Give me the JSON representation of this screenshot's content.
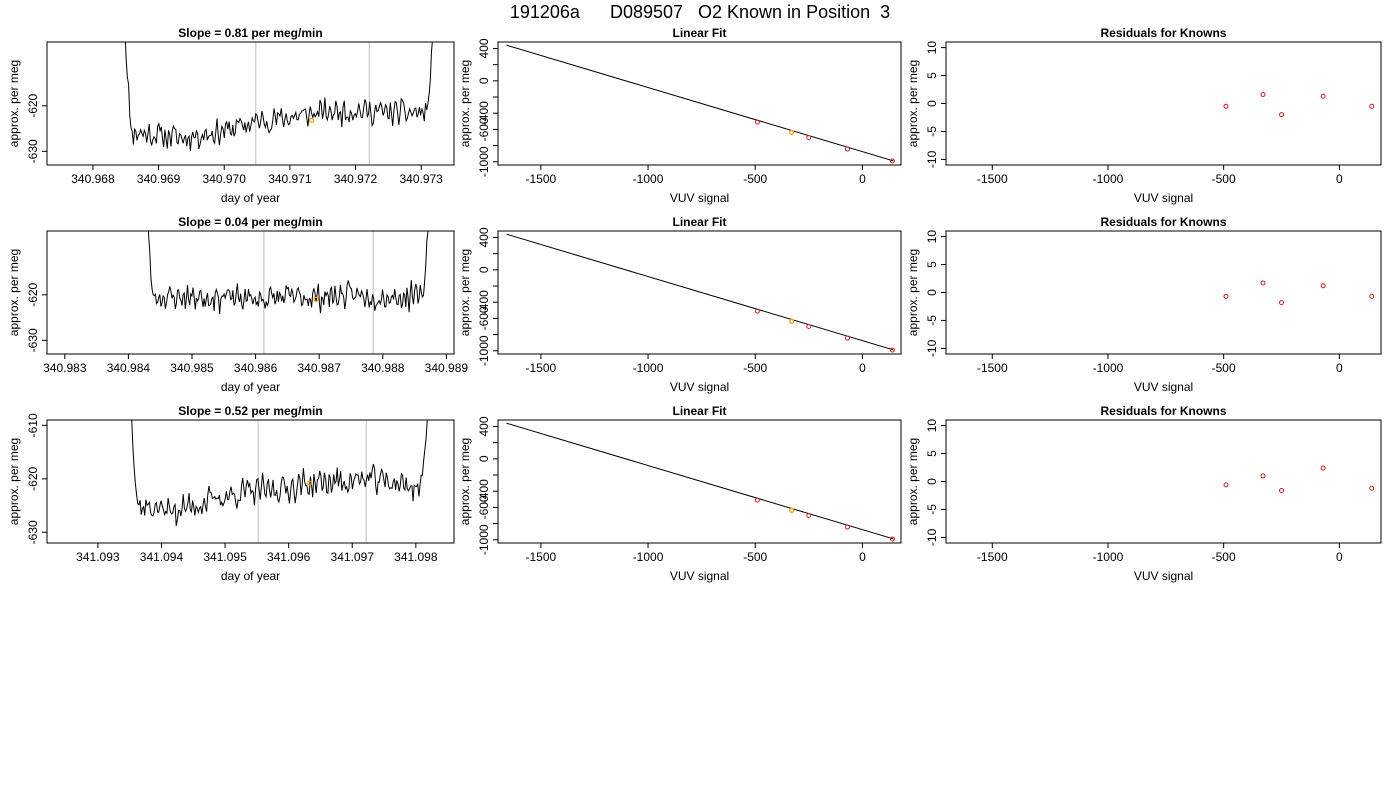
{
  "main_title": "191206a      D089507   O2 Known in Position  3",
  "colors": {
    "trace": "#000000",
    "point": "#cc2222",
    "highlight": "#ff9900",
    "vline": "#c8c8c8",
    "fit_line": "#000000"
  },
  "chart_data": [
    {
      "type": "line",
      "row": 0,
      "col": 0,
      "title": "Slope =  0.81  per meg/min",
      "xlabel": "day of year",
      "ylabel": "approx. per meg",
      "xlim": [
        340.9673,
        340.9735
      ],
      "ylim": [
        -633,
        -606
      ],
      "xticks": [
        340.968,
        340.969,
        340.97,
        340.971,
        340.972,
        340.973
      ],
      "xtick_labels": [
        "340.968",
        "340.969",
        "340.970",
        "340.971",
        "340.972",
        "340.973"
      ],
      "yticks": [
        -630,
        -620
      ],
      "ytick_labels": [
        "-630",
        "-620"
      ],
      "x_start": 340.96845,
      "x_end": 340.97325,
      "vlines": [
        340.97048,
        340.97221
      ],
      "trend": [
        [
          340.9687,
          -626.0
        ],
        [
          340.9694,
          -627.0
        ],
        [
          340.97,
          -625.5
        ],
        [
          340.9705,
          -623.5
        ],
        [
          340.971,
          -622.5
        ],
        [
          340.9715,
          -621.5
        ],
        [
          340.972,
          -621.0
        ],
        [
          340.9725,
          -621.5
        ],
        [
          340.973,
          -621.5
        ]
      ],
      "amplitude": 2.5,
      "seed": 11,
      "highlight_point": [
        340.97133,
        -623.2
      ]
    },
    {
      "type": "scatter",
      "row": 0,
      "col": 1,
      "title": "Linear Fit",
      "xlabel": "VUV signal",
      "ylabel": "approx. per meg",
      "xlim": [
        -1700,
        180
      ],
      "ylim": [
        -1040,
        480
      ],
      "xticks": [
        -1500,
        -1000,
        -500,
        0
      ],
      "xtick_labels": [
        "-1500",
        "-1000",
        "-500",
        "0"
      ],
      "yticks": [
        -1000,
        -800,
        -600,
        -400,
        -200,
        0,
        200,
        400
      ],
      "ytick_labels": [
        "-1000",
        "",
        "-600",
        "-400",
        "",
        "0",
        "",
        "400"
      ],
      "line": [
        [
          -1660,
          440
        ],
        [
          145,
          -990
        ]
      ],
      "points": [
        [
          -490,
          -510
        ],
        [
          -250,
          -700
        ],
        [
          -70,
          -843
        ],
        [
          140,
          -990
        ]
      ],
      "highlight_points": [
        [
          -330,
          -637
        ]
      ]
    },
    {
      "type": "scatter",
      "row": 0,
      "col": 2,
      "title": "Residuals for Knowns",
      "xlabel": "VUV signal",
      "ylabel": "approx. per meg",
      "xlim": [
        -1700,
        180
      ],
      "ylim": [
        -11,
        11
      ],
      "xticks": [
        -1500,
        -1000,
        -500,
        0
      ],
      "xtick_labels": [
        "-1500",
        "-1000",
        "-500",
        "0"
      ],
      "yticks": [
        -10,
        -5,
        0,
        5,
        10
      ],
      "ytick_labels": [
        "-10",
        "-5",
        "0",
        "5",
        "10"
      ],
      "points": [
        [
          -490,
          -0.5
        ],
        [
          -330,
          1.6
        ],
        [
          -250,
          -2.0
        ],
        [
          -70,
          1.3
        ],
        [
          140,
          -0.5
        ]
      ]
    },
    {
      "type": "line",
      "row": 1,
      "col": 0,
      "title": "Slope =  0.04  per meg/min",
      "xlabel": "day of year",
      "ylabel": "approx. per meg",
      "xlim": [
        340.98272,
        340.98912
      ],
      "ylim": [
        -633,
        -606
      ],
      "xticks": [
        340.983,
        340.984,
        340.985,
        340.986,
        340.987,
        340.988,
        340.989
      ],
      "xtick_labels": [
        "340.983",
        "340.984",
        "340.985",
        "340.986",
        "340.987",
        "340.988",
        "340.989"
      ],
      "yticks": [
        -630,
        -620
      ],
      "ytick_labels": [
        "-630",
        "-620"
      ],
      "x_start": 340.98425,
      "x_end": 340.98878,
      "vlines": [
        340.98613,
        340.98785
      ],
      "trend": [
        [
          340.9843,
          -620.5
        ],
        [
          340.985,
          -620.5
        ],
        [
          340.9855,
          -620.5
        ],
        [
          340.986,
          -621.0
        ],
        [
          340.9865,
          -620.5
        ],
        [
          340.987,
          -620.5
        ],
        [
          340.9875,
          -620.0
        ],
        [
          340.988,
          -620.5
        ],
        [
          340.9885,
          -620.5
        ]
      ],
      "amplitude": 2.5,
      "seed": 23,
      "highlight_point": [
        340.98695,
        -621.0
      ]
    },
    {
      "type": "scatter",
      "row": 1,
      "col": 1,
      "title": "Linear Fit",
      "xlabel": "VUV signal",
      "ylabel": "approx. per meg",
      "xlim": [
        -1700,
        180
      ],
      "ylim": [
        -1040,
        480
      ],
      "xticks": [
        -1500,
        -1000,
        -500,
        0
      ],
      "xtick_labels": [
        "-1500",
        "-1000",
        "-500",
        "0"
      ],
      "yticks": [
        -1000,
        -800,
        -600,
        -400,
        -200,
        0,
        200,
        400
      ],
      "ytick_labels": [
        "-1000",
        "",
        "-600",
        "-400",
        "",
        "0",
        "",
        "400"
      ],
      "line": [
        [
          -1660,
          440
        ],
        [
          145,
          -990
        ]
      ],
      "points": [
        [
          -490,
          -510
        ],
        [
          -250,
          -700
        ],
        [
          -70,
          -843
        ],
        [
          140,
          -990
        ]
      ],
      "highlight_points": [
        [
          -330,
          -637
        ]
      ]
    },
    {
      "type": "scatter",
      "row": 1,
      "col": 2,
      "title": "Residuals for Knowns",
      "xlabel": "VUV signal",
      "ylabel": "approx. per meg",
      "xlim": [
        -1700,
        180
      ],
      "ylim": [
        -11,
        11
      ],
      "xticks": [
        -1500,
        -1000,
        -500,
        0
      ],
      "xtick_labels": [
        "-1500",
        "-1000",
        "-500",
        "0"
      ],
      "yticks": [
        -10,
        -5,
        0,
        5,
        10
      ],
      "ytick_labels": [
        "-10",
        "-5",
        "0",
        "5",
        "10"
      ],
      "points": [
        [
          -490,
          -0.7
        ],
        [
          -330,
          1.7
        ],
        [
          -250,
          -1.8
        ],
        [
          -70,
          1.2
        ],
        [
          140,
          -0.7
        ]
      ]
    },
    {
      "type": "line",
      "row": 2,
      "col": 0,
      "title": "Slope =  0.52  per meg/min",
      "xlabel": "day of year",
      "ylabel": "approx. per meg",
      "xlim": [
        341.0922,
        341.0986
      ],
      "ylim": [
        -632,
        -609
      ],
      "xticks": [
        341.093,
        341.094,
        341.095,
        341.096,
        341.097,
        341.098
      ],
      "xtick_labels": [
        "341.093",
        "341.094",
        "341.095",
        "341.096",
        "341.097",
        "341.098"
      ],
      "yticks": [
        -630,
        -620,
        -610
      ],
      "ytick_labels": [
        "-630",
        "-620",
        "-610"
      ],
      "x_start": 341.09348,
      "x_end": 341.09825,
      "vlines": [
        341.09552,
        341.09722
      ],
      "trend": [
        [
          341.0936,
          -625.0
        ],
        [
          341.0942,
          -626.0
        ],
        [
          341.0948,
          -624.0
        ],
        [
          341.0953,
          -622.5
        ],
        [
          341.0958,
          -622.0
        ],
        [
          341.0963,
          -621.0
        ],
        [
          341.0968,
          -620.5
        ],
        [
          341.0973,
          -620.0
        ],
        [
          341.0978,
          -621.0
        ],
        [
          341.0981,
          -622.0
        ]
      ],
      "amplitude": 2.4,
      "seed": 37,
      "highlight_point": [
        341.09633,
        -620.8
      ]
    },
    {
      "type": "scatter",
      "row": 2,
      "col": 1,
      "title": "Linear Fit",
      "xlabel": "VUV signal",
      "ylabel": "approx. per meg",
      "xlim": [
        -1700,
        180
      ],
      "ylim": [
        -1040,
        480
      ],
      "xticks": [
        -1500,
        -1000,
        -500,
        0
      ],
      "xtick_labels": [
        "-1500",
        "-1000",
        "-500",
        "0"
      ],
      "yticks": [
        -1000,
        -800,
        -600,
        -400,
        -200,
        0,
        200,
        400
      ],
      "ytick_labels": [
        "-1000",
        "",
        "-600",
        "-400",
        "",
        "0",
        "",
        "400"
      ],
      "line": [
        [
          -1660,
          440
        ],
        [
          145,
          -990
        ]
      ],
      "points": [
        [
          -490,
          -510
        ],
        [
          -250,
          -700
        ],
        [
          -70,
          -843
        ],
        [
          140,
          -990
        ]
      ],
      "highlight_points": [
        [
          -330,
          -637
        ]
      ]
    },
    {
      "type": "scatter",
      "row": 2,
      "col": 2,
      "title": "Residuals for Knowns",
      "xlabel": "VUV signal",
      "ylabel": "approx. per meg",
      "xlim": [
        -1700,
        180
      ],
      "ylim": [
        -11,
        11
      ],
      "xticks": [
        -1500,
        -1000,
        -500,
        0
      ],
      "xtick_labels": [
        "-1500",
        "-1000",
        "-500",
        "0"
      ],
      "yticks": [
        -10,
        -5,
        0,
        5,
        10
      ],
      "ytick_labels": [
        "-10",
        "-5",
        "0",
        "5",
        "10"
      ],
      "points": [
        [
          -490,
          -0.6
        ],
        [
          -330,
          1.0
        ],
        [
          -250,
          -1.6
        ],
        [
          -70,
          2.4
        ],
        [
          140,
          -1.2
        ]
      ]
    }
  ]
}
